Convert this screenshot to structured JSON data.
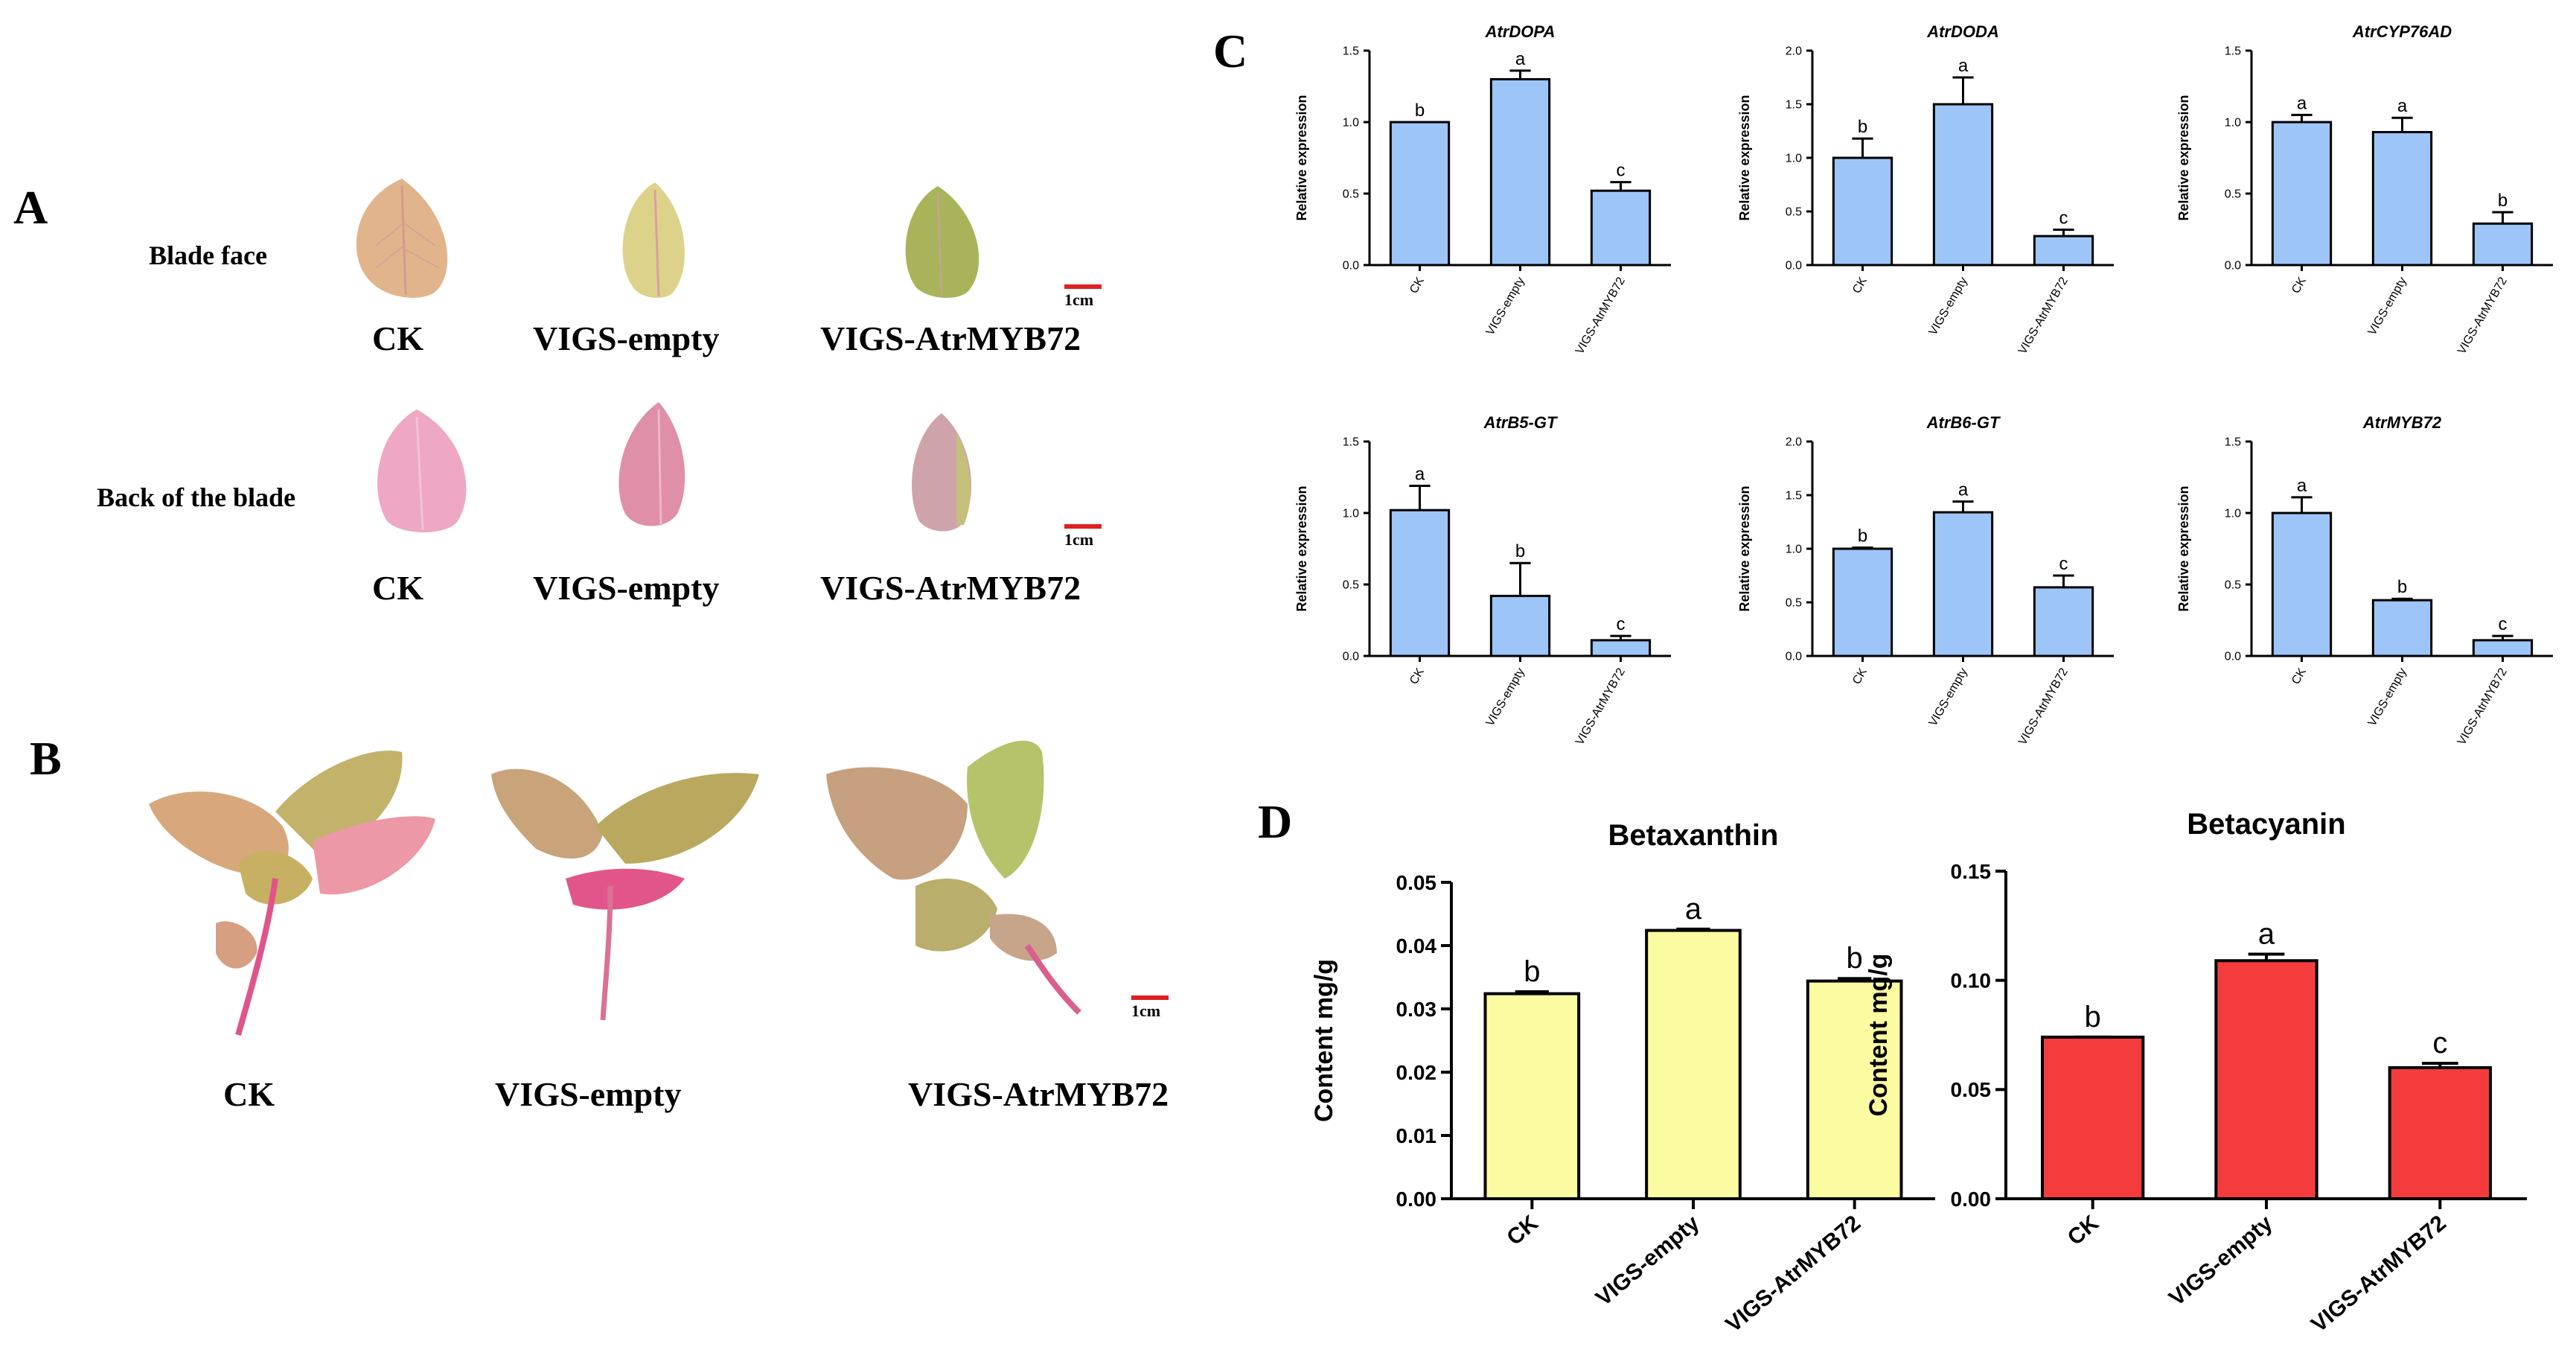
{
  "panels": {
    "A": {
      "letter": "A",
      "row1": {
        "label": "Blade face",
        "captions": [
          "CK",
          "VIGS-empty",
          "VIGS-AtrMYB72"
        ],
        "scale": "1cm"
      },
      "row2": {
        "label": "Back of the blade",
        "captions": [
          "CK",
          "VIGS-empty",
          "VIGS-AtrMYB72"
        ],
        "scale": "1cm"
      }
    },
    "B": {
      "letter": "B",
      "captions": [
        "CK",
        "VIGS-empty",
        "VIGS-AtrMYB72"
      ],
      "scale": "1cm"
    },
    "C": {
      "letter": "C"
    },
    "D": {
      "letter": "D"
    }
  },
  "colors": {
    "blue_bar": "#9ec5f8",
    "yellow_bar": "#fbfba2",
    "red_bar": "#f53c3c",
    "scale_bar": "#e02020"
  },
  "chart_data": [
    {
      "type": "bar",
      "panel": "C",
      "title": "AtrDOPA",
      "ylabel": "Relative expression",
      "categories": [
        "CK",
        "VIGS-empty",
        "VIGS-AtrMYB72"
      ],
      "values": [
        1.0,
        1.3,
        0.52
      ],
      "errors": [
        0.0,
        0.06,
        0.06
      ],
      "letters": [
        "b",
        "a",
        "c"
      ],
      "ylim": [
        0,
        1.5
      ],
      "yticks": [
        "0.0",
        "0.5",
        "1.0",
        "1.5"
      ],
      "color": "#9ec5f8"
    },
    {
      "type": "bar",
      "panel": "C",
      "title": "AtrDODA",
      "ylabel": "Relative expression",
      "categories": [
        "CK",
        "VIGS-empty",
        "VIGS-AtrMYB72"
      ],
      "values": [
        1.0,
        1.5,
        0.27
      ],
      "errors": [
        0.18,
        0.25,
        0.06
      ],
      "letters": [
        "b",
        "a",
        "c"
      ],
      "ylim": [
        0,
        2.0
      ],
      "yticks": [
        "0.0",
        "0.5",
        "1.0",
        "1.5",
        "2.0"
      ],
      "color": "#9ec5f8"
    },
    {
      "type": "bar",
      "panel": "C",
      "title": "AtrCYP76AD",
      "ylabel": "Relative expression",
      "categories": [
        "CK",
        "VIGS-empty",
        "VIGS-AtrMYB72"
      ],
      "values": [
        1.0,
        0.93,
        0.29
      ],
      "errors": [
        0.05,
        0.1,
        0.08
      ],
      "letters": [
        "a",
        "a",
        "b"
      ],
      "ylim": [
        0,
        1.5
      ],
      "yticks": [
        "0.0",
        "0.5",
        "1.0",
        "1.5"
      ],
      "color": "#9ec5f8"
    },
    {
      "type": "bar",
      "panel": "C",
      "title": "AtrB5-GT",
      "ylabel": "Relative expression",
      "categories": [
        "CK",
        "VIGS-empty",
        "VIGS-AtrMYB72"
      ],
      "values": [
        1.02,
        0.42,
        0.11
      ],
      "errors": [
        0.17,
        0.23,
        0.03
      ],
      "letters": [
        "a",
        "b",
        "c"
      ],
      "ylim": [
        0,
        1.5
      ],
      "yticks": [
        "0.0",
        "0.5",
        "1.0",
        "1.5"
      ],
      "color": "#9ec5f8"
    },
    {
      "type": "bar",
      "panel": "C",
      "title": "AtrB6-GT",
      "ylabel": "Relative expression",
      "categories": [
        "CK",
        "VIGS-empty",
        "VIGS-AtrMYB72"
      ],
      "values": [
        1.0,
        1.34,
        0.64
      ],
      "errors": [
        0.01,
        0.1,
        0.11
      ],
      "letters": [
        "b",
        "a",
        "c"
      ],
      "ylim": [
        0,
        2.0
      ],
      "yticks": [
        "0.0",
        "0.5",
        "1.0",
        "1.5",
        "2.0"
      ],
      "color": "#9ec5f8"
    },
    {
      "type": "bar",
      "panel": "C",
      "title": "AtrMYB72",
      "ylabel": "Relative expression",
      "categories": [
        "CK",
        "VIGS-empty",
        "VIGS-AtrMYB72"
      ],
      "values": [
        1.0,
        0.39,
        0.11
      ],
      "errors": [
        0.11,
        0.01,
        0.03
      ],
      "letters": [
        "a",
        "b",
        "c"
      ],
      "ylim": [
        0,
        1.5
      ],
      "yticks": [
        "0.0",
        "0.5",
        "1.0",
        "1.5"
      ],
      "color": "#9ec5f8"
    },
    {
      "type": "bar",
      "panel": "D",
      "title": "Betaxanthin",
      "ylabel": "Content mg/g",
      "categories": [
        "CK",
        "VIGS-empty",
        "VIGS-AtrMYB72"
      ],
      "values": [
        0.0324,
        0.0424,
        0.0344
      ],
      "errors": [
        0.0003,
        0.0002,
        0.0004
      ],
      "letters": [
        "b",
        "a",
        "b"
      ],
      "ylim": [
        0,
        0.05
      ],
      "yticks": [
        "0.00",
        "0.01",
        "0.02",
        "0.03",
        "0.04",
        "0.05"
      ],
      "color": "#fbfba2"
    },
    {
      "type": "bar",
      "panel": "D",
      "title": "Betacyanin",
      "ylabel": "Content mg/g",
      "categories": [
        "CK",
        "VIGS-empty",
        "VIGS-AtrMYB72"
      ],
      "values": [
        0.074,
        0.109,
        0.06
      ],
      "errors": [
        0.0,
        0.003,
        0.002
      ],
      "letters": [
        "b",
        "a",
        "c"
      ],
      "ylim": [
        0,
        0.15
      ],
      "yticks": [
        "0.00",
        "0.05",
        "0.10",
        "0.15"
      ],
      "color": "#f53c3c"
    }
  ]
}
